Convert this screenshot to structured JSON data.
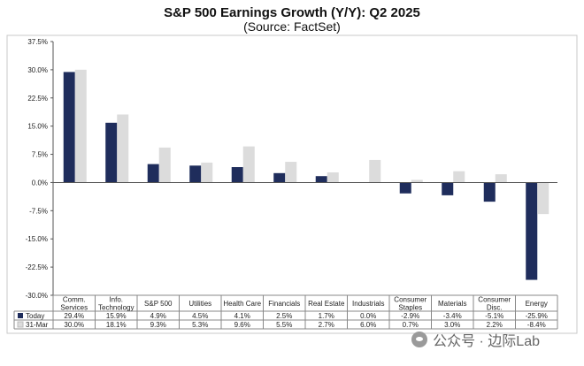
{
  "chart_data": {
    "type": "bar",
    "title": "S&P 500 Earnings Growth (Y/Y): Q2 2025",
    "subtitle": "(Source: FactSet)",
    "categories": [
      [
        "Comm.",
        "Services"
      ],
      [
        "Info.",
        "Technology"
      ],
      [
        "S&P 500"
      ],
      [
        "Utilities"
      ],
      [
        "Health Care"
      ],
      [
        "Financials"
      ],
      [
        "Real Estate"
      ],
      [
        "Industrials"
      ],
      [
        "Consumer",
        "Staples"
      ],
      [
        "Materials"
      ],
      [
        "Consumer",
        "Disc."
      ],
      [
        "Energy"
      ]
    ],
    "series": [
      {
        "name": "Today",
        "color": "#1f2d5c",
        "values": [
          29.4,
          15.9,
          4.9,
          4.5,
          4.1,
          2.5,
          1.7,
          0.0,
          -2.9,
          -3.4,
          -5.1,
          -25.9
        ],
        "labels": [
          "29.4%",
          "15.9%",
          "4.9%",
          "4.5%",
          "4.1%",
          "2.5%",
          "1.7%",
          "0.0%",
          "-2.9%",
          "-3.4%",
          "-5.1%",
          "-25.9%"
        ]
      },
      {
        "name": "31-Mar",
        "color": "#dcdcdc",
        "values": [
          30.0,
          18.1,
          9.3,
          5.3,
          9.6,
          5.5,
          2.7,
          6.0,
          0.7,
          3.0,
          2.2,
          -8.4
        ],
        "labels": [
          "30.0%",
          "18.1%",
          "9.3%",
          "5.3%",
          "9.6%",
          "5.5%",
          "2.7%",
          "6.0%",
          "0.7%",
          "3.0%",
          "2.2%",
          "-8.4%"
        ]
      }
    ],
    "ylim": [
      -30.0,
      37.5
    ],
    "yticks": [
      37.5,
      30.0,
      22.5,
      15.0,
      7.5,
      0.0,
      -7.5,
      -15.0,
      -22.5,
      -30.0
    ],
    "ytick_labels": [
      "37.5%",
      "30.0%",
      "22.5%",
      "15.0%",
      "7.5%",
      "0.0%",
      "-7.5%",
      "-15.0%",
      "-22.5%",
      "-30.0%"
    ],
    "legend": "table-below",
    "grid": false
  },
  "watermark": {
    "text": "公众号 · 边际Lab",
    "icon": "wechat-icon"
  }
}
